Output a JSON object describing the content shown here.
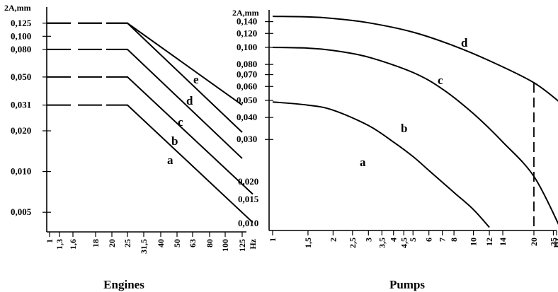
{
  "chart_data": [
    {
      "type": "line",
      "caption": "Engines",
      "ylabel": "2A,mm",
      "xlabel": "",
      "x_unit": "Hz",
      "x_scale": "log-like",
      "y_scale": "log",
      "x_ticks": [
        "1",
        "1,3",
        "1,6",
        "18",
        "20",
        "25",
        "31,5",
        "40",
        "50",
        "63",
        "80",
        "100",
        "125"
      ],
      "y_ticks": [
        "0,125",
        "0,100",
        "0,080",
        "0,050",
        "0,031",
        "0,020",
        "0,010",
        "0,005"
      ],
      "series": [
        {
          "name": "a",
          "plateau": 0.031,
          "break_at": "25",
          "end_at": "Hz",
          "end_value": 0.0042
        },
        {
          "name": "b",
          "plateau": 0.05,
          "break_at": "25",
          "end_at": "Hz",
          "end_value": 0.0068
        },
        {
          "name": "c",
          "plateau": 0.08,
          "break_at": "25",
          "end_at": "125",
          "end_value": 0.0125
        },
        {
          "name": "d",
          "plateau": 0.125,
          "break_at": "25",
          "end_at": "125",
          "end_value": 0.0195
        },
        {
          "name": "e",
          "plateau": 0.125,
          "break_at": "25",
          "end_at": "125",
          "end_value": 0.031
        }
      ],
      "right_tick_labels": [
        "0,020",
        "0,015",
        "0,010"
      ]
    },
    {
      "type": "line",
      "caption": "Pumps",
      "ylabel": "2A,mm",
      "xlabel": "",
      "x_unit": "Hz",
      "x_scale": "log",
      "y_scale": "log",
      "x_ticks": [
        "1",
        "1,5",
        "2",
        "2,5",
        "3",
        "3,5",
        "4",
        "4,5",
        "5",
        "6",
        "7",
        "8",
        "10",
        "12",
        "14",
        "20",
        "25",
        "Hz"
      ],
      "y_ticks": [
        "0,140",
        "0,120",
        "0,100",
        "0,080",
        "0,070",
        "0,060",
        "0,050",
        "0,040",
        "0,030"
      ],
      "marker_x": 20,
      "series": [
        {
          "name": "a",
          "x": [
            1,
            1.5,
            2,
            3,
            4,
            5,
            6,
            8,
            10,
            12
          ],
          "y": [
            0.049,
            0.047,
            0.044,
            0.036,
            0.029,
            0.024,
            0.02,
            0.015,
            0.012,
            0.0095
          ]
        },
        {
          "name": "b",
          "x": [
            1,
            1.5,
            2,
            3,
            5,
            7,
            10,
            14,
            20,
            27
          ],
          "y": [
            0.1,
            0.099,
            0.096,
            0.088,
            0.072,
            0.058,
            0.042,
            0.029,
            0.0185,
            0.0095
          ]
        },
        {
          "name": "c",
          "x": [
            1,
            1.5,
            2,
            3,
            5,
            8,
            12,
            20,
            28
          ],
          "y": [
            0.15,
            0.149,
            0.146,
            0.138,
            0.122,
            0.102,
            0.084,
            0.063,
            0.047
          ]
        },
        {
          "name": "d",
          "x": [],
          "y": []
        }
      ]
    }
  ]
}
